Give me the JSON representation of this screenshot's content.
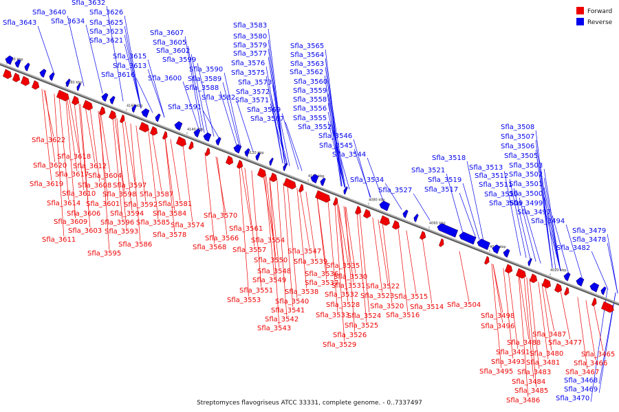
{
  "caption": "Streptomyces flavogriseus ATCC 33331, complete genome. - 0..7337497",
  "legend": [
    {
      "label": "Forward",
      "color": "#ee0000"
    },
    {
      "label": "Reverse",
      "color": "#0000ee"
    }
  ],
  "colors": {
    "forward": "#ee0000",
    "reverse": "#0000ee",
    "axis": "#777777"
  },
  "ticks": [
    "4200 kbp",
    "4180 kbp",
    "4160 kbp",
    "4140 kbp",
    "4120 kbp",
    "4100 kbp",
    "4080 kbp",
    "4060 kbp",
    "4040 kbp",
    "4020 kbp"
  ],
  "reverse_labels": [
    "Sfla_3643",
    "Sfla_3640",
    "Sfla_3632",
    "Sfla_3634",
    "Sfla_3626",
    "Sfla_3625",
    "Sfla_3623",
    "Sfla_3621",
    "Sfla_3607",
    "Sfla_3605",
    "Sfla_3602",
    "Sfla_3599",
    "Sfla_3615",
    "Sfla_3613",
    "Sfla_3616",
    "Sfla_3600",
    "Sfla_3591",
    "Sfla_3590",
    "Sfla_3589",
    "Sfla_3588",
    "Sfla_3582",
    "Sfla_3583",
    "Sfla_3580",
    "Sfla_3579",
    "Sfla_3577",
    "Sfla_3576",
    "Sfla_3575",
    "Sfla_3573",
    "Sfla_3572",
    "Sfla_3571",
    "Sfla_3569",
    "Sfla_3567",
    "Sfla_3565",
    "Sfla_3564",
    "Sfla_3563",
    "Sfla_3562",
    "Sfla_3560",
    "Sfla_3559",
    "Sfla_3558",
    "Sfla_3556",
    "Sfla_3555",
    "Sfla_3552",
    "Sfla_3546",
    "Sfla_3545",
    "Sfla_3544",
    "Sfla_3534",
    "Sfla_3527",
    "Sfla_3518",
    "Sfla_3521",
    "Sfla_3519",
    "Sfla_3517",
    "Sfla_3513",
    "Sfla_3512",
    "Sfla_3511",
    "Sfla_3510",
    "Sfla_3509",
    "Sfla_3508",
    "Sfla_3507",
    "Sfla_3506",
    "Sfla_3505",
    "Sfla_3503",
    "Sfla_3502",
    "Sfla_3501",
    "Sfla_3500",
    "Sfla_3499",
    "Sfla_3497",
    "Sfla_3494",
    "Sfla_3479",
    "Sfla_3478",
    "Sfla_3482",
    "Sfla_3468",
    "Sfla_3469",
    "Sfla_3470"
  ],
  "forward_labels": [
    "Sfla_3622",
    "Sfla_3618",
    "Sfla_3620",
    "Sfla_3612",
    "Sfla_3617",
    "Sfla_3604",
    "Sfla_3619",
    "Sfla_3608",
    "Sfla_3597",
    "Sfla_3610",
    "Sfla_3598",
    "Sfla_3587",
    "Sfla_3614",
    "Sfla_3601",
    "Sfla_3592",
    "Sfla_3581",
    "Sfla_3606",
    "Sfla_3594",
    "Sfla_3584",
    "Sfla_3609",
    "Sfla_3596",
    "Sfla_3585",
    "Sfla_3574",
    "Sfla_3570",
    "Sfla_3603",
    "Sfla_3593",
    "Sfla_3578",
    "Sfla_3561",
    "Sfla_3611",
    "Sfla_3586",
    "Sfla_3566",
    "Sfla_3554",
    "Sfla_3568",
    "Sfla_3557",
    "Sfla_3547",
    "Sfla_3595",
    "Sfla_3550",
    "Sfla_3539",
    "Sfla_3548",
    "Sfla_3536",
    "Sfla_3549",
    "Sfla_3537",
    "Sfla_3551",
    "Sfla_3538",
    "Sfla_3553",
    "Sfla_3540",
    "Sfla_3541",
    "Sfla_3542",
    "Sfla_3543",
    "Sfla_3535",
    "Sfla_3530",
    "Sfla_3531",
    "Sfla_3532",
    "Sfla_3523",
    "Sfla_3522",
    "Sfla_3528",
    "Sfla_3520",
    "Sfla_3515",
    "Sfla_3514",
    "Sfla_3533",
    "Sfla_3524",
    "Sfla_3516",
    "Sfla_3525",
    "Sfla_3526",
    "Sfla_3529",
    "Sfla_3504",
    "Sfla_3498",
    "Sfla_3496",
    "Sfla_3487",
    "Sfla_3488",
    "Sfla_3477",
    "Sfla_3491",
    "Sfla_3480",
    "Sfla_3465",
    "Sfla_3493",
    "Sfla_3481",
    "Sfla_3466",
    "Sfla_3495",
    "Sfla_3483",
    "Sfla_3467",
    "Sfla_3484",
    "Sfla_3485",
    "Sfla_3486"
  ]
}
